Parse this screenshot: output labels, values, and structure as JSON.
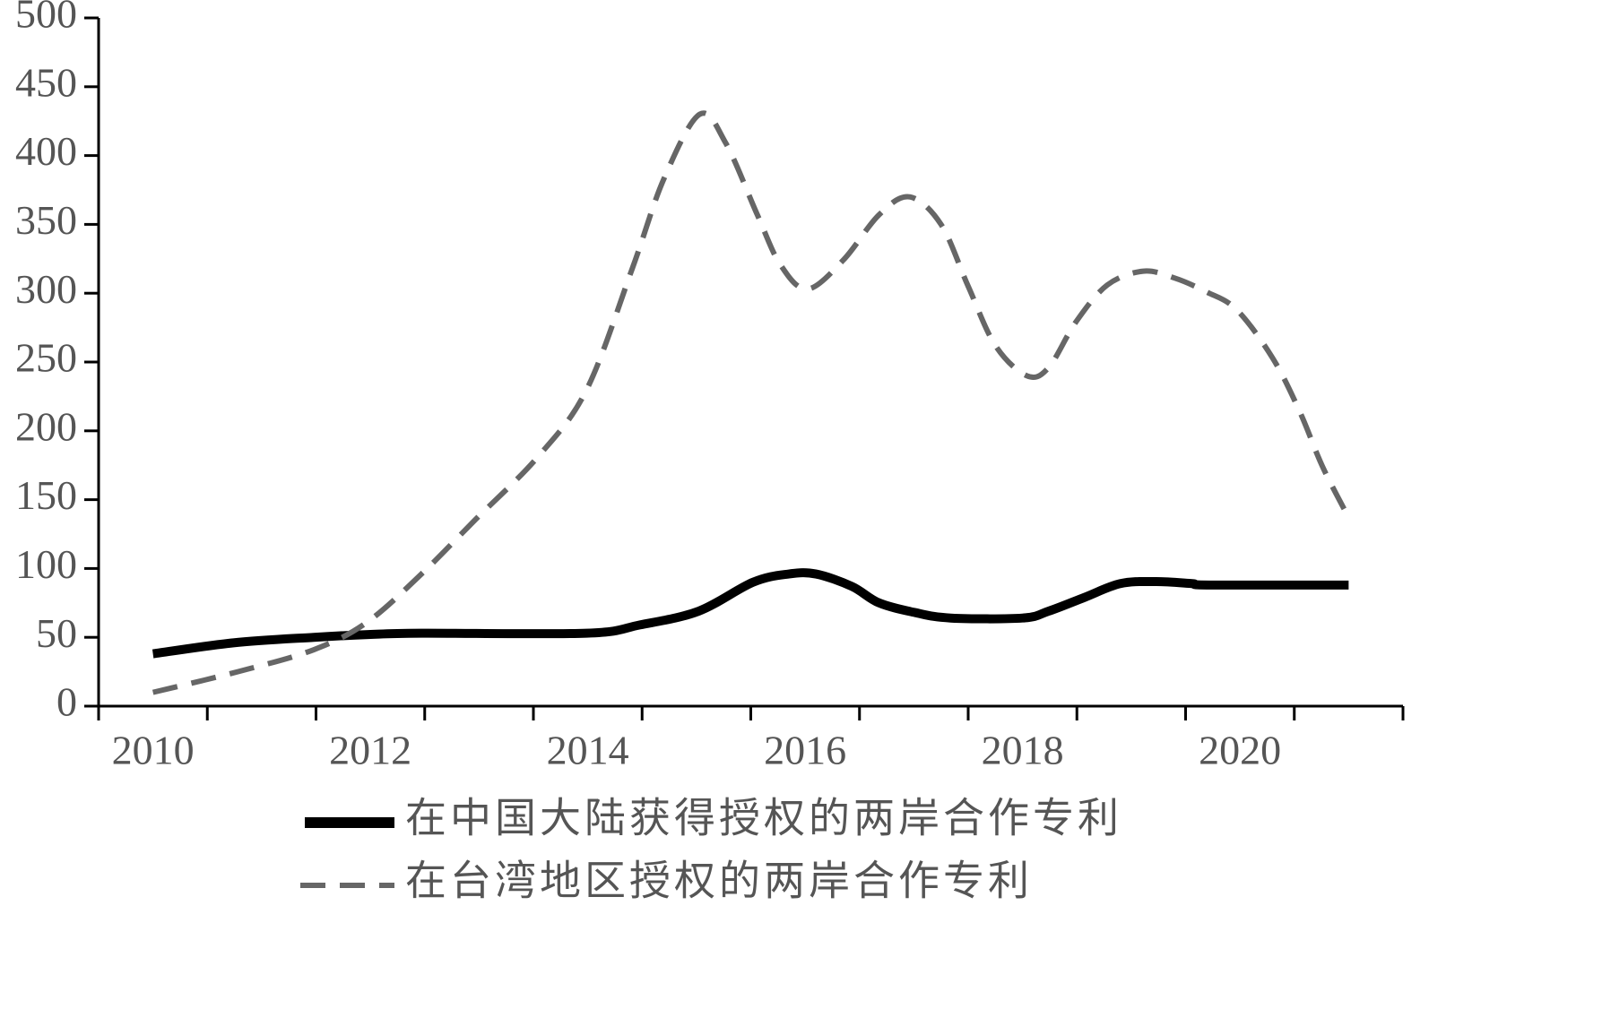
{
  "chart_data": {
    "type": "line",
    "xlim": [
      2009.5,
      2021.5
    ],
    "xticks": [
      2010,
      2012,
      2014,
      2016,
      2018,
      2020
    ],
    "ylim": [
      0,
      500
    ],
    "yticks": [
      0,
      50,
      100,
      150,
      200,
      250,
      300,
      350,
      400,
      450,
      500
    ],
    "series": [
      {
        "name": "在中国大陆获得授权的两岸合作专利",
        "color": "#000000",
        "dash": false,
        "x": [
          2010.0,
          2010.74,
          2011.48,
          2011.98,
          2012.47,
          2013.99,
          2014.48,
          2015.02,
          2015.52,
          2015.85,
          2016.1,
          2016.43,
          2016.68,
          2017.01,
          2017.34,
          2018.0,
          2018.24,
          2018.57,
          2018.9,
          2019.23,
          2019.56,
          2019.72,
          2021.0
        ],
        "values": [
          38,
          46,
          50,
          52,
          53,
          53,
          59,
          69,
          90,
          96,
          96,
          87,
          75,
          68,
          64,
          64,
          69,
          79,
          89,
          90.5,
          89,
          88,
          88
        ]
      },
      {
        "name": "在台湾地区授权的两岸合作专利",
        "color": "#666666",
        "dash": true,
        "x": [
          2010.0,
          2010.78,
          2011.48,
          2011.97,
          2012.47,
          2012.96,
          2013.54,
          2013.99,
          2014.41,
          2014.7,
          2015.03,
          2015.27,
          2015.56,
          2015.77,
          2016.02,
          2016.35,
          2016.68,
          2016.96,
          2017.25,
          2017.5,
          2017.75,
          2018.04,
          2018.24,
          2018.49,
          2018.78,
          2019.11,
          2019.4,
          2019.69,
          2019.97,
          2020.3,
          2020.55,
          2020.76,
          2021.0
        ],
        "values": [
          10,
          25,
          41,
          61,
          96,
          135,
          181,
          230,
          318,
          383,
          430,
          409,
          357,
          321,
          303,
          324,
          357,
          370,
          350,
          305,
          262,
          240,
          246,
          279,
          306,
          316,
          311,
          301,
          288,
          253,
          214,
          174,
          137
        ]
      }
    ]
  }
}
